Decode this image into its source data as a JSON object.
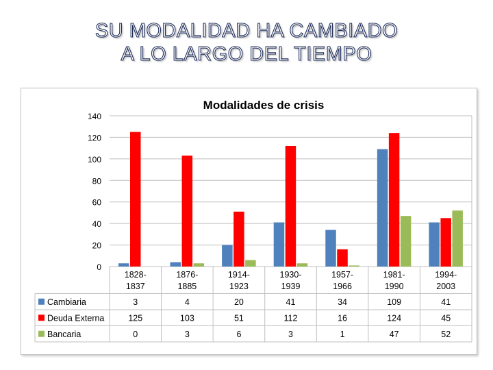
{
  "slide": {
    "title_line1": "SU MODALIDAD HA CAMBIADO",
    "title_line2": "A LO LARGO DEL TIEMPO"
  },
  "chart_data": {
    "type": "bar",
    "title": "Modalidades de crisis",
    "categories": [
      [
        "1828-",
        "1837"
      ],
      [
        "1876-",
        "1885"
      ],
      [
        "1914-",
        "1923"
      ],
      [
        "1930-",
        "1939"
      ],
      [
        "1957-",
        "1966"
      ],
      [
        "1981-",
        "1990"
      ],
      [
        "1994-",
        "2003"
      ]
    ],
    "series": [
      {
        "name": "Cambiaria",
        "color": "#4f81bd",
        "values": [
          3,
          4,
          20,
          41,
          34,
          109,
          41
        ]
      },
      {
        "name": "Deuda Externa",
        "color": "#ff0000",
        "values": [
          125,
          103,
          51,
          112,
          16,
          124,
          45
        ]
      },
      {
        "name": "Bancaria",
        "color": "#9bbb59",
        "values": [
          0,
          3,
          6,
          3,
          1,
          47,
          52
        ]
      }
    ],
    "ylim": [
      0,
      140
    ],
    "yticks": [
      0,
      20,
      40,
      60,
      80,
      100,
      120,
      140
    ],
    "grid": true,
    "legend": "data-table",
    "xlabel": "",
    "ylabel": ""
  }
}
